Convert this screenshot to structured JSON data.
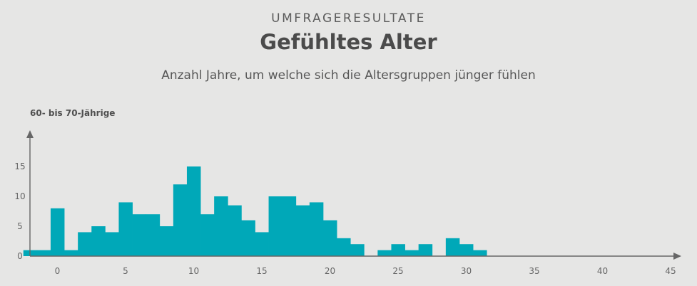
{
  "header": {
    "kicker": "UMFRAGERESULTATE",
    "title": "Gefühltes Alter",
    "subtitle": "Anzahl Jahre, um welche sich die Altersgruppen jünger fühlen"
  },
  "chart_data": {
    "type": "bar",
    "group_label": "60- bis 70-Jährige",
    "bar_color": "#00a8b8",
    "axis_color": "#666666",
    "xlim": [
      -2,
      45
    ],
    "ylim": [
      0,
      18
    ],
    "x_ticks": [
      "0",
      "5",
      "10",
      "15",
      "20",
      "25",
      "30",
      "35",
      "40",
      "45"
    ],
    "y_ticks": [
      "0",
      "5",
      "10",
      "15"
    ],
    "bars": [
      {
        "x": -2,
        "y": 1
      },
      {
        "x": -1,
        "y": 1
      },
      {
        "x": 0,
        "y": 8
      },
      {
        "x": 1,
        "y": 1
      },
      {
        "x": 2,
        "y": 4
      },
      {
        "x": 3,
        "y": 5
      },
      {
        "x": 4,
        "y": 4
      },
      {
        "x": 5,
        "y": 9
      },
      {
        "x": 6,
        "y": 7
      },
      {
        "x": 7,
        "y": 7
      },
      {
        "x": 8,
        "y": 5
      },
      {
        "x": 9,
        "y": 12
      },
      {
        "x": 10,
        "y": 15
      },
      {
        "x": 11,
        "y": 7
      },
      {
        "x": 12,
        "y": 10
      },
      {
        "x": 13,
        "y": 8.5
      },
      {
        "x": 14,
        "y": 6
      },
      {
        "x": 15,
        "y": 4
      },
      {
        "x": 16,
        "y": 10
      },
      {
        "x": 17,
        "y": 10
      },
      {
        "x": 18,
        "y": 8.5
      },
      {
        "x": 19,
        "y": 9
      },
      {
        "x": 20,
        "y": 6
      },
      {
        "x": 21,
        "y": 3
      },
      {
        "x": 22,
        "y": 2
      },
      {
        "x": 24,
        "y": 1
      },
      {
        "x": 25,
        "y": 2
      },
      {
        "x": 26,
        "y": 1
      },
      {
        "x": 27,
        "y": 2
      },
      {
        "x": 29,
        "y": 3
      },
      {
        "x": 30,
        "y": 2
      },
      {
        "x": 31,
        "y": 1
      }
    ]
  }
}
